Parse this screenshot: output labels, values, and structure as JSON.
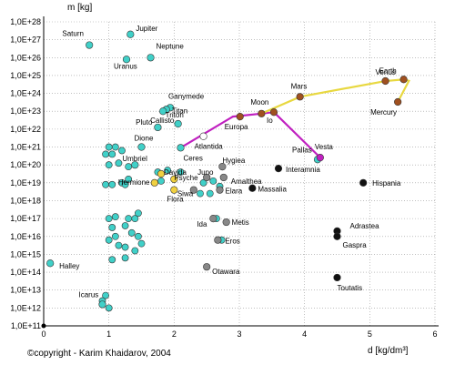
{
  "chart_data": {
    "type": "scatter",
    "ylabel": "m [kg]",
    "xlabel": "d [kg/dm³]",
    "copyright": "©copyright - Karim Khaidarov, 2004",
    "xlim": [
      0,
      6
    ],
    "ylim_exp": [
      11,
      28
    ],
    "y_log_scale": true,
    "grid": true,
    "x_ticks": [
      "0",
      "1",
      "2",
      "3",
      "4",
      "5",
      "6"
    ],
    "y_ticks": [
      "1,0E+11",
      "1,0E+12",
      "1,0E+13",
      "1,0E+14",
      "1,0E+15",
      "1,0E+16",
      "1,0E+17",
      "1,0E+18",
      "1,0E+19",
      "1,0E+20",
      "1,0E+21",
      "1,0E+22",
      "1,0E+23",
      "1,0E+24",
      "1,0E+25",
      "1,0E+26",
      "1,0E+27",
      "1,0E+28"
    ],
    "colors": {
      "icy": "#40d0c8",
      "rocky_asteroid": "#888888",
      "metal_asteroid": "#111111",
      "small_icy": "#f0d040",
      "terrestrial": "#a05020",
      "white": "#ffffff",
      "purple_line": "#c020c0",
      "yellow_line": "#e8d840"
    },
    "labeled_objects": [
      {
        "name": "Saturn",
        "x": 0.7,
        "y": 26.7,
        "color": "icy",
        "label": "Saturn"
      },
      {
        "name": "Jupiter",
        "x": 1.33,
        "y": 27.3,
        "color": "icy",
        "label": "Jupiter"
      },
      {
        "name": "Neptune",
        "x": 1.64,
        "y": 26.0,
        "color": "icy",
        "label": "Neptune"
      },
      {
        "name": "Uranus",
        "x": 1.27,
        "y": 25.9,
        "color": "icy",
        "label": "Uranus"
      },
      {
        "name": "Triton",
        "x": 2.06,
        "y": 22.3,
        "color": "icy",
        "label": "Triton"
      },
      {
        "name": "Ganymede",
        "x": 1.94,
        "y": 23.2,
        "color": "icy",
        "label": "Ganymede"
      },
      {
        "name": "Titan",
        "x": 1.88,
        "y": 23.1,
        "color": "icy",
        "label": "Titan"
      },
      {
        "name": "Callisto",
        "x": 1.83,
        "y": 23.0,
        "color": "icy",
        "label": "Callisto"
      },
      {
        "name": "Pluto",
        "x": 1.75,
        "y": 22.1,
        "color": "icy",
        "label": "Pluto"
      },
      {
        "name": "Dione",
        "x": 1.5,
        "y": 21.0,
        "color": "icy",
        "label": "Dione"
      },
      {
        "name": "Umbriel",
        "x": 1.4,
        "y": 20.0,
        "color": "icy",
        "label": "Umbriel"
      },
      {
        "name": "Halley",
        "x": 0.1,
        "y": 14.5,
        "color": "icy",
        "label": "Halley"
      },
      {
        "name": "Icarus",
        "x": 0.9,
        "y": 12.2,
        "color": "icy",
        "label": "Icarus"
      },
      {
        "name": "Davida",
        "x": 1.8,
        "y": 19.5,
        "color": "small_icy",
        "label": "Davida"
      },
      {
        "name": "Europa",
        "x": 3.01,
        "y": 22.7,
        "color": "terrestrial",
        "label": "Europa"
      },
      {
        "name": "Psyche",
        "x": 2.0,
        "y": 19.2,
        "color": "small_icy",
        "label": "Psyche"
      },
      {
        "name": "Hermione",
        "x": 1.7,
        "y": 19.0,
        "color": "small_icy",
        "label": "Hermione"
      },
      {
        "name": "Flora",
        "x": 2.0,
        "y": 18.6,
        "color": "small_icy",
        "label": "Flora"
      },
      {
        "name": "Juno",
        "x": 2.5,
        "y": 19.3,
        "color": "rocky_asteroid",
        "label": "Juno"
      },
      {
        "name": "Siwa",
        "x": 2.3,
        "y": 18.6,
        "color": "rocky_asteroid",
        "label": "Siwa"
      },
      {
        "name": "Hygiea",
        "x": 2.74,
        "y": 19.9,
        "color": "rocky_asteroid",
        "label": "Hygiea"
      },
      {
        "name": "Amalthea",
        "x": 2.76,
        "y": 19.3,
        "color": "rocky_asteroid",
        "label": "Amalthea"
      },
      {
        "name": "Elara",
        "x": 2.7,
        "y": 18.6,
        "color": "rocky_asteroid",
        "label": "Elara"
      },
      {
        "name": "Ida",
        "x": 2.6,
        "y": 17.0,
        "color": "rocky_asteroid",
        "label": "Ida"
      },
      {
        "name": "Metis",
        "x": 2.8,
        "y": 16.8,
        "color": "rocky_asteroid",
        "label": "Metis"
      },
      {
        "name": "Eros",
        "x": 2.67,
        "y": 15.8,
        "color": "rocky_asteroid",
        "label": "Eros"
      },
      {
        "name": "Otawara",
        "x": 2.5,
        "y": 14.3,
        "color": "rocky_asteroid",
        "label": "Otawara"
      },
      {
        "name": "Ceres",
        "x": 2.1,
        "y": 20.96,
        "color": "icy",
        "label": "Ceres"
      },
      {
        "name": "Atlantida",
        "x": 2.45,
        "y": 21.6,
        "color": "white",
        "label": "Atlantida"
      },
      {
        "name": "Moon",
        "x": 3.34,
        "y": 22.87,
        "color": "terrestrial",
        "label": "Moon"
      },
      {
        "name": "Io",
        "x": 3.53,
        "y": 22.95,
        "color": "terrestrial",
        "label": "Io"
      },
      {
        "name": "Massalia",
        "x": 3.2,
        "y": 18.7,
        "color": "metal_asteroid",
        "label": "Massalia"
      },
      {
        "name": "Interamnia",
        "x": 3.6,
        "y": 19.8,
        "color": "metal_asteroid",
        "label": "Interamnia"
      },
      {
        "name": "Pallas",
        "x": 4.2,
        "y": 20.3,
        "color": "icy",
        "label": "Pallas"
      },
      {
        "name": "Vesta",
        "x": 4.24,
        "y": 20.41,
        "color": "purple_line",
        "label": "Vesta"
      },
      {
        "name": "Mars",
        "x": 3.93,
        "y": 23.81,
        "color": "terrestrial",
        "label": "Mars"
      },
      {
        "name": "Earth",
        "x": 5.52,
        "y": 24.78,
        "color": "terrestrial",
        "label": "Earth"
      },
      {
        "name": "Venus",
        "x": 5.24,
        "y": 24.69,
        "color": "terrestrial",
        "label": "Venus"
      },
      {
        "name": "Mercury",
        "x": 5.43,
        "y": 23.52,
        "color": "terrestrial",
        "label": "Mercury"
      },
      {
        "name": "Hispania",
        "x": 4.9,
        "y": 19.0,
        "color": "metal_asteroid",
        "label": "Hispania"
      },
      {
        "name": "Adrastea",
        "x": 4.5,
        "y": 16.3,
        "color": "metal_asteroid",
        "label": "Adrastea"
      },
      {
        "name": "Gaspra",
        "x": 4.5,
        "y": 16.0,
        "color": "metal_asteroid",
        "label": "Gaspra"
      },
      {
        "name": "Toutatis",
        "x": 4.5,
        "y": 13.7,
        "color": "metal_asteroid",
        "label": "Toutatis"
      }
    ],
    "unlabeled_points": [
      {
        "x": 1.0,
        "y": 21.0
      },
      {
        "x": 1.1,
        "y": 21.0
      },
      {
        "x": 0.95,
        "y": 20.6
      },
      {
        "x": 1.05,
        "y": 20.6
      },
      {
        "x": 1.2,
        "y": 20.8
      },
      {
        "x": 1.0,
        "y": 20.0
      },
      {
        "x": 1.15,
        "y": 20.1
      },
      {
        "x": 1.3,
        "y": 19.9
      },
      {
        "x": 1.3,
        "y": 19.2
      },
      {
        "x": 1.2,
        "y": 19.0
      },
      {
        "x": 1.25,
        "y": 18.9
      },
      {
        "x": 0.95,
        "y": 18.9
      },
      {
        "x": 1.05,
        "y": 18.9
      },
      {
        "x": 1.0,
        "y": 17.0
      },
      {
        "x": 1.1,
        "y": 17.1
      },
      {
        "x": 1.3,
        "y": 17.0
      },
      {
        "x": 1.4,
        "y": 17.0
      },
      {
        "x": 1.45,
        "y": 17.3
      },
      {
        "x": 1.05,
        "y": 16.5
      },
      {
        "x": 1.25,
        "y": 16.6
      },
      {
        "x": 1.35,
        "y": 16.2
      },
      {
        "x": 1.45,
        "y": 16.0
      },
      {
        "x": 1.0,
        "y": 15.8
      },
      {
        "x": 1.1,
        "y": 16.0
      },
      {
        "x": 1.15,
        "y": 15.5
      },
      {
        "x": 1.25,
        "y": 15.4
      },
      {
        "x": 1.5,
        "y": 15.6
      },
      {
        "x": 1.05,
        "y": 14.7
      },
      {
        "x": 1.25,
        "y": 14.8
      },
      {
        "x": 1.4,
        "y": 15.2
      },
      {
        "x": 0.95,
        "y": 12.7
      },
      {
        "x": 0.9,
        "y": 12.4
      },
      {
        "x": 1.0,
        "y": 12.0
      },
      {
        "x": 1.75,
        "y": 19.6
      },
      {
        "x": 1.9,
        "y": 19.7
      },
      {
        "x": 1.8,
        "y": 19.1
      },
      {
        "x": 2.1,
        "y": 19.6
      },
      {
        "x": 2.45,
        "y": 19.0
      },
      {
        "x": 2.6,
        "y": 19.1
      },
      {
        "x": 2.7,
        "y": 18.8
      },
      {
        "x": 2.4,
        "y": 18.4
      },
      {
        "x": 2.55,
        "y": 18.4
      },
      {
        "x": 2.65,
        "y": 17.0
      },
      {
        "x": 2.73,
        "y": 15.8
      }
    ],
    "series": [
      {
        "points": [
          [
            2.1,
            20.96
          ],
          [
            2.9,
            22.7
          ],
          [
            3.34,
            22.87
          ],
          [
            3.53,
            22.95
          ],
          [
            4.24,
            20.41
          ]
        ],
        "color": "purple_line"
      },
      {
        "points": [
          [
            3.34,
            22.87
          ],
          [
            3.93,
            23.81
          ],
          [
            5.24,
            24.69
          ],
          [
            5.52,
            24.78
          ],
          [
            5.6,
            24.7
          ],
          [
            5.43,
            23.52
          ]
        ],
        "color": "yellow_line"
      }
    ]
  }
}
